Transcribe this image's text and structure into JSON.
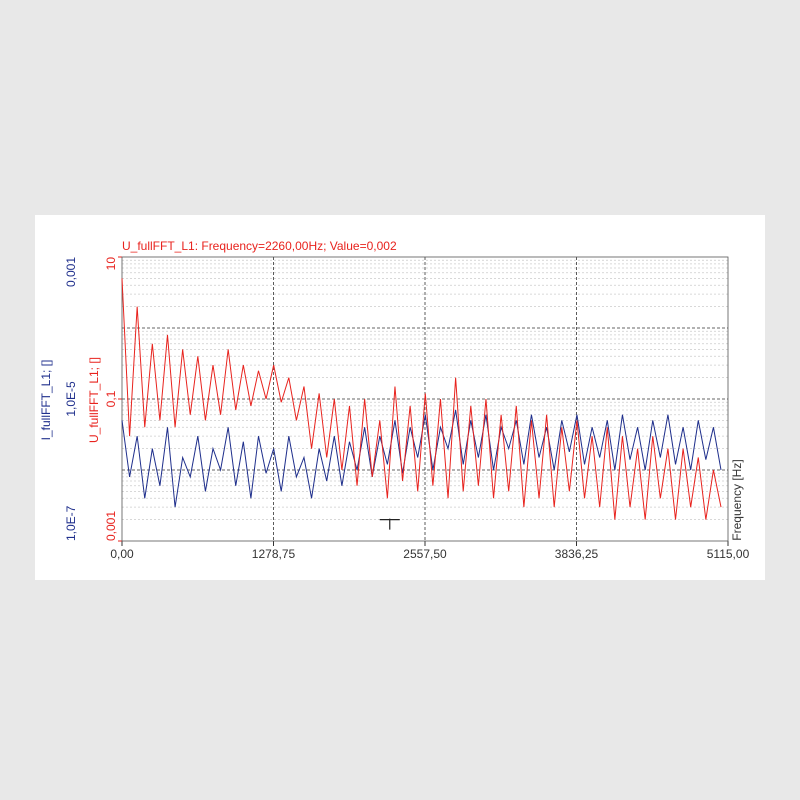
{
  "chart_data": {
    "type": "line",
    "annotation": "U_fullFFT_L1: Frequency=2260,00Hz; Value=0,002",
    "cursor": {
      "x": 2260,
      "value": 0.002
    },
    "x_label": "Frequency [Hz]",
    "y_label": "U_fullFFT_L1; []",
    "y2_label": "I_fullFFT_L1; []",
    "log_scale": true,
    "grid": true,
    "xlim": [
      0,
      5115
    ],
    "xticks": [
      {
        "value": 0,
        "label": "0,00"
      },
      {
        "value": 1278.75,
        "label": "1278,75"
      },
      {
        "value": 2557.5,
        "label": "2557,50"
      },
      {
        "value": 3836.25,
        "label": "3836,25"
      },
      {
        "value": 5115,
        "label": "5115,00"
      }
    ],
    "ylim": [
      0.001,
      10
    ],
    "yticks": [
      {
        "value": 0.001,
        "label": "0,001"
      },
      {
        "value": 0.1,
        "label": "0,1"
      },
      10
    ],
    "y2lim": [
      1e-07,
      0.001
    ],
    "y2ticks": [
      {
        "value": 1e-07,
        "label": "1,0E-7"
      },
      {
        "value": 1e-05,
        "label": "1,0E-5"
      },
      {
        "value": 0.001,
        "label": "0,001"
      }
    ],
    "x": [
      0,
      64,
      128,
      192,
      256,
      320,
      384,
      448,
      512,
      576,
      640,
      704,
      768,
      832,
      896,
      960,
      1024,
      1088,
      1152,
      1216,
      1280,
      1344,
      1408,
      1472,
      1536,
      1600,
      1664,
      1728,
      1792,
      1856,
      1920,
      1984,
      2048,
      2112,
      2176,
      2240,
      2304,
      2368,
      2432,
      2496,
      2560,
      2624,
      2688,
      2752,
      2816,
      2880,
      2944,
      3008,
      3072,
      3136,
      3200,
      3264,
      3328,
      3392,
      3456,
      3520,
      3584,
      3648,
      3712,
      3776,
      3840,
      3904,
      3968,
      4032,
      4096,
      4160,
      4224,
      4288,
      4352,
      4416,
      4480,
      4544,
      4608,
      4672,
      4736,
      4800,
      4864,
      4928,
      4992,
      5056
    ],
    "series": [
      {
        "name": "U_fullFFT_L1",
        "color": "#e8231e",
        "axis": "y",
        "values": [
          5,
          0.03,
          2,
          0.04,
          0.6,
          0.05,
          0.8,
          0.04,
          0.5,
          0.06,
          0.4,
          0.05,
          0.3,
          0.06,
          0.5,
          0.07,
          0.3,
          0.08,
          0.25,
          0.1,
          0.3,
          0.09,
          0.2,
          0.05,
          0.15,
          0.02,
          0.12,
          0.015,
          0.1,
          0.01,
          0.08,
          0.006,
          0.1,
          0.008,
          0.05,
          0.004,
          0.15,
          0.007,
          0.08,
          0.005,
          0.12,
          0.006,
          0.1,
          0.004,
          0.2,
          0.005,
          0.08,
          0.006,
          0.1,
          0.004,
          0.06,
          0.005,
          0.08,
          0.003,
          0.05,
          0.004,
          0.06,
          0.003,
          0.04,
          0.005,
          0.05,
          0.004,
          0.03,
          0.003,
          0.04,
          0.002,
          0.03,
          0.003,
          0.02,
          0.002,
          0.03,
          0.004,
          0.02,
          0.002,
          0.02,
          0.003,
          0.015,
          0.002,
          0.01,
          0.003
        ]
      },
      {
        "name": "I_fullFFT_L1",
        "color": "#1f2f8c",
        "axis": "y2",
        "values": [
          5e-06,
          8e-07,
          3e-06,
          4e-07,
          2e-06,
          6e-07,
          4e-06,
          3e-07,
          1.5e-06,
          8e-07,
          3e-06,
          5e-07,
          2e-06,
          1e-06,
          4e-06,
          6e-07,
          2.5e-06,
          4e-07,
          3e-06,
          9e-07,
          2e-06,
          5e-07,
          3e-06,
          8e-07,
          1.5e-06,
          4e-07,
          2e-06,
          7e-07,
          3e-06,
          6e-07,
          2.5e-06,
          1e-06,
          4e-06,
          8e-07,
          3e-06,
          1.2e-06,
          5e-06,
          9e-07,
          4e-06,
          1.5e-06,
          6e-06,
          1e-06,
          4e-06,
          2e-06,
          7e-06,
          1.2e-06,
          5e-06,
          1.5e-06,
          6e-06,
          1e-06,
          4e-06,
          2e-06,
          5e-06,
          1.2e-06,
          6e-06,
          1.5e-06,
          4e-06,
          1e-06,
          5e-06,
          1.8e-06,
          6e-06,
          1.2e-06,
          4e-06,
          1.5e-06,
          5e-06,
          1e-06,
          6e-06,
          1.4e-06,
          4e-06,
          1e-06,
          5e-06,
          1.5e-06,
          6e-06,
          1.2e-06,
          4e-06,
          1e-06,
          5e-06,
          1.4e-06,
          4e-06,
          1e-06
        ]
      }
    ]
  }
}
